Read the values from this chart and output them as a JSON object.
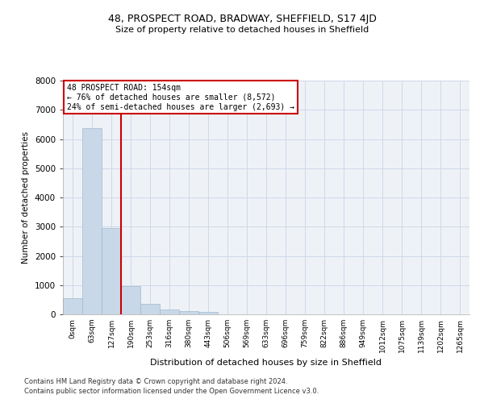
{
  "title1": "48, PROSPECT ROAD, BRADWAY, SHEFFIELD, S17 4JD",
  "title2": "Size of property relative to detached houses in Sheffield",
  "xlabel": "Distribution of detached houses by size in Sheffield",
  "ylabel": "Number of detached properties",
  "footnote1": "Contains HM Land Registry data © Crown copyright and database right 2024.",
  "footnote2": "Contains public sector information licensed under the Open Government Licence v3.0.",
  "bar_labels": [
    "0sqm",
    "63sqm",
    "127sqm",
    "190sqm",
    "253sqm",
    "316sqm",
    "380sqm",
    "443sqm",
    "506sqm",
    "569sqm",
    "633sqm",
    "696sqm",
    "759sqm",
    "822sqm",
    "886sqm",
    "949sqm",
    "1012sqm",
    "1075sqm",
    "1139sqm",
    "1202sqm",
    "1265sqm"
  ],
  "bar_values": [
    560,
    6380,
    2950,
    960,
    360,
    175,
    110,
    80,
    0,
    0,
    0,
    0,
    0,
    0,
    0,
    0,
    0,
    0,
    0,
    0,
    0
  ],
  "bar_color": "#c8d8e8",
  "bar_edge_color": "#a0b8cc",
  "grid_color": "#d0d8e8",
  "bg_color": "#eef2f7",
  "property_value": 154,
  "vline_x": 2.5,
  "annotation_text1": "48 PROSPECT ROAD: 154sqm",
  "annotation_text2": "← 76% of detached houses are smaller (8,572)",
  "annotation_text3": "24% of semi-detached houses are larger (2,693) →",
  "annotation_box_color": "#ffffff",
  "annotation_border_color": "#cc0000",
  "vline_color": "#cc0000",
  "ylim": [
    0,
    8000
  ],
  "yticks": [
    0,
    1000,
    2000,
    3000,
    4000,
    5000,
    6000,
    7000,
    8000
  ]
}
